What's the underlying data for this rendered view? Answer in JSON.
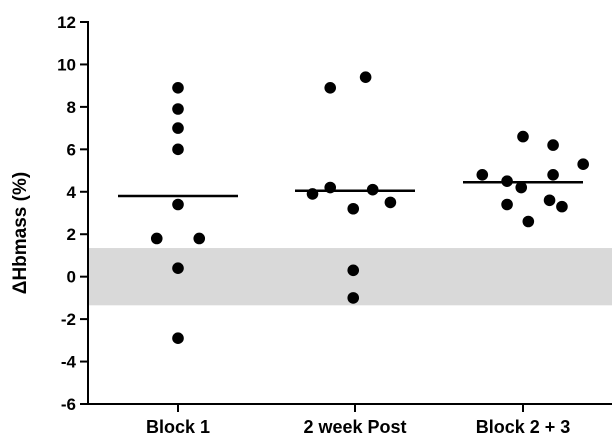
{
  "chart_data": {
    "type": "scatter",
    "title": "",
    "xlabel": "",
    "ylabel": "ΔHbmass (%)",
    "ylim": [
      -6,
      12
    ],
    "yticks": [
      -6,
      -4,
      -2,
      0,
      2,
      4,
      6,
      8,
      10,
      12
    ],
    "categories": [
      "Block 1",
      "2 week Post",
      "Block 2 + 3"
    ],
    "grid": false,
    "legend": "none",
    "reference_band": {
      "y_low": -1.35,
      "y_high": 1.35,
      "color": "#d9d9d9"
    },
    "series": [
      {
        "category": "Block 1",
        "mean": 3.8,
        "points": [
          {
            "offset": 0,
            "y": 8.9
          },
          {
            "offset": 0,
            "y": 7.9
          },
          {
            "offset": 0,
            "y": 7.0
          },
          {
            "offset": 0,
            "y": 6.0
          },
          {
            "offset": 0,
            "y": 3.4
          },
          {
            "offset": -0.12,
            "y": 1.8
          },
          {
            "offset": 0.12,
            "y": 1.8
          },
          {
            "offset": 0,
            "y": 0.4
          },
          {
            "offset": 0,
            "y": -2.9
          }
        ]
      },
      {
        "category": "2 week Post",
        "mean": 4.05,
        "points": [
          {
            "offset": 0.06,
            "y": 9.4
          },
          {
            "offset": -0.14,
            "y": 8.9
          },
          {
            "offset": -0.14,
            "y": 4.2
          },
          {
            "offset": -0.24,
            "y": 3.9
          },
          {
            "offset": 0.1,
            "y": 4.1
          },
          {
            "offset": 0.2,
            "y": 3.5
          },
          {
            "offset": -0.01,
            "y": 3.2
          },
          {
            "offset": -0.01,
            "y": 0.3
          },
          {
            "offset": -0.01,
            "y": -1.0
          }
        ]
      },
      {
        "category": "Block 2 + 3",
        "mean": 4.45,
        "points": [
          {
            "offset": 0.0,
            "y": 6.6
          },
          {
            "offset": 0.17,
            "y": 6.2
          },
          {
            "offset": 0.34,
            "y": 5.3
          },
          {
            "offset": -0.23,
            "y": 4.8
          },
          {
            "offset": 0.17,
            "y": 4.8
          },
          {
            "offset": -0.09,
            "y": 4.5
          },
          {
            "offset": -0.01,
            "y": 4.2
          },
          {
            "offset": -0.09,
            "y": 3.4
          },
          {
            "offset": 0.15,
            "y": 3.6
          },
          {
            "offset": 0.22,
            "y": 3.3
          },
          {
            "offset": 0.03,
            "y": 2.6
          }
        ]
      }
    ]
  }
}
